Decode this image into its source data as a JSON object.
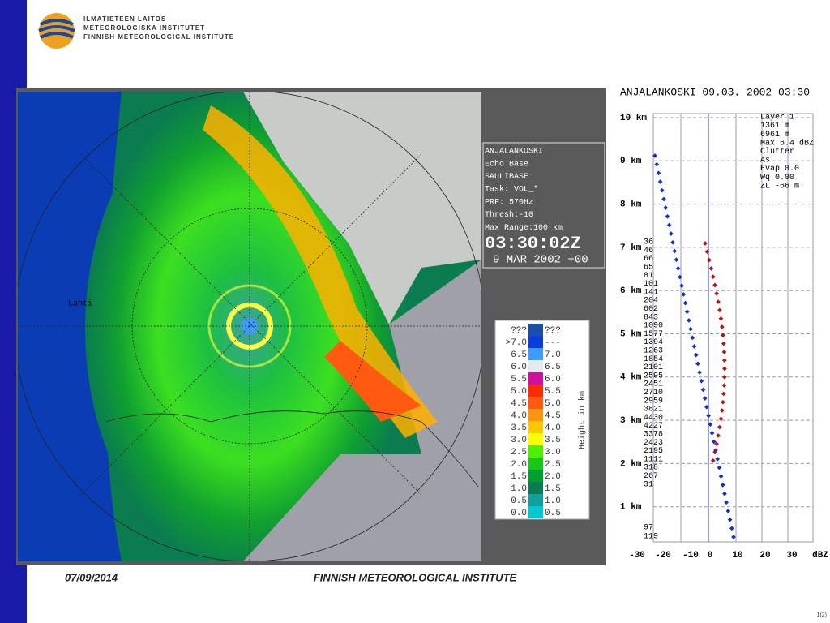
{
  "header": {
    "org_lines": [
      "ILMATIETEEN LAITOS",
      "METEOROLOGISKA INSTITUTET",
      "FINNISH METEOROLOGICAL INSTITUTE"
    ]
  },
  "radar": {
    "place_label": "Lahti",
    "info": [
      "ANJALANKOSKI",
      "Echo Base",
      "SAULIBASE",
      "Task: VOL_*",
      "PRF: 570Hz",
      "Thresh:-10",
      "Max Range:100 km"
    ],
    "time": "03:30:02Z",
    "date": "9 MAR 2002 +00",
    "legend": {
      "axis_label": "Height in km",
      "rows": [
        {
          "low": "???",
          "high": "???",
          "color": "#1c4fa8"
        },
        {
          "low": ">7.0",
          "high": "---",
          "color": "#0a3ce0"
        },
        {
          "low": "6.5",
          "high": "7.0",
          "color": "#3c9cff"
        },
        {
          "low": "6.0",
          "high": "6.5",
          "color": "#e8e8f0"
        },
        {
          "low": "5.5",
          "high": "6.0",
          "color": "#d0109c"
        },
        {
          "low": "5.0",
          "high": "5.5",
          "color": "#ff2a00"
        },
        {
          "low": "4.5",
          "high": "5.0",
          "color": "#ff5a10"
        },
        {
          "low": "4.0",
          "high": "4.5",
          "color": "#ff9410"
        },
        {
          "low": "3.5",
          "high": "4.0",
          "color": "#ffc800"
        },
        {
          "low": "3.0",
          "high": "3.5",
          "color": "#ffff00"
        },
        {
          "low": "2.5",
          "high": "3.0",
          "color": "#4cf000"
        },
        {
          "low": "2.0",
          "high": "2.5",
          "color": "#18c818"
        },
        {
          "low": "1.5",
          "high": "2.0",
          "color": "#00a030"
        },
        {
          "low": "1.0",
          "high": "1.5",
          "color": "#0a7c50"
        },
        {
          "low": "0.5",
          "high": "1.0",
          "color": "#10a0a0"
        },
        {
          "low": "0.0",
          "high": "0.5",
          "color": "#00c8d0"
        }
      ]
    }
  },
  "profile": {
    "title": "ANJALANKOSKI 09.03. 2002 03:30",
    "y_labels": [
      "10 km",
      "9 km",
      "8 km",
      "7 km",
      "6 km",
      "5 km",
      "4 km",
      "3 km",
      "2 km",
      "1 km"
    ],
    "x_labels": [
      "-30",
      "-20",
      "-10",
      "0",
      "10",
      "20",
      "30",
      "dBZ"
    ],
    "info": [
      "Layer 1",
      "1361 m",
      "6961 m",
      "Max 6.4 dBZ",
      "Clutter",
      "As",
      "Evap 0.0",
      "Wq 0.00",
      "ZL -66 m"
    ],
    "side_numbers": [
      36,
      46,
      66,
      65,
      81,
      101,
      141,
      204,
      602,
      843,
      1090,
      1577,
      1394,
      1263,
      1854,
      2101,
      2595,
      2451,
      2710,
      2959,
      3821,
      4430,
      4227,
      3378,
      2423,
      2195,
      1111,
      318,
      267,
      31
    ],
    "low_numbers": [
      97,
      119
    ]
  },
  "footer": {
    "date": "07/09/2014",
    "org": "FINNISH METEOROLOGICAL INSTITUTE",
    "page": "1(2)"
  }
}
